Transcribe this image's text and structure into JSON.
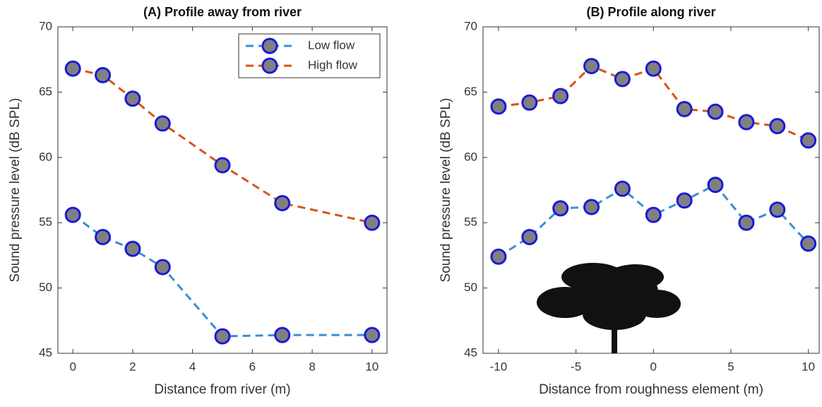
{
  "chart_data": [
    {
      "type": "line",
      "title": "(A) Profile away from river",
      "xlabel": "Distance from river (m)",
      "ylabel": "Sound pressure level (dB SPL)",
      "x": [
        0,
        1,
        2,
        3,
        5,
        7,
        10
      ],
      "series": [
        {
          "name": "Low flow",
          "color": "#3b8fd0",
          "values": [
            55.6,
            53.9,
            53.0,
            51.6,
            46.3,
            46.4,
            46.4
          ]
        },
        {
          "name": "High flow",
          "color": "#d95319",
          "values": [
            66.8,
            66.3,
            64.5,
            62.6,
            59.4,
            56.5,
            55.0
          ]
        }
      ],
      "xlim": [
        -0.5,
        10.5
      ],
      "xticks": [
        0,
        2,
        4,
        6,
        8,
        10
      ],
      "ylim": [
        45,
        70
      ],
      "yticks": [
        45,
        50,
        55,
        60,
        65,
        70
      ],
      "marker_face": "#808080",
      "marker_edge": "#1a1ad8",
      "legend": "upper right"
    },
    {
      "type": "line",
      "title": "(B) Profile along river",
      "xlabel": "Distance from roughness element (m)",
      "ylabel": "Sound pressure level (dB SPL)",
      "x": [
        -10,
        -8,
        -6,
        -4,
        -2,
        0,
        2,
        4,
        6,
        8,
        10
      ],
      "series": [
        {
          "color": "#3b8fd0",
          "values": [
            52.4,
            53.9,
            56.1,
            56.2,
            57.6,
            55.6,
            56.7,
            57.9,
            55.0,
            56.0,
            53.4
          ]
        },
        {
          "color": "#d95319",
          "values": [
            63.9,
            64.2,
            64.7,
            67.0,
            66.0,
            66.8,
            63.7,
            63.5,
            62.7,
            62.4,
            61.3
          ]
        }
      ],
      "xlim": [
        -11,
        10.7
      ],
      "xticks": [
        -10,
        -5,
        0,
        5,
        10
      ],
      "ylim": [
        45,
        70
      ],
      "yticks": [
        45,
        50,
        55,
        60,
        65,
        70
      ],
      "marker_face": "#808080",
      "marker_edge": "#1a1ad8"
    }
  ]
}
